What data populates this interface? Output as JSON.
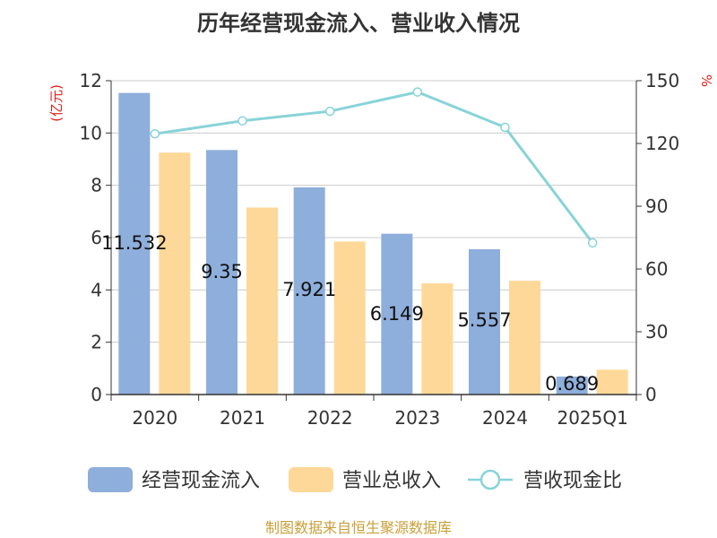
{
  "title": "历年经营现金流入、营业收入情况",
  "footer": "制图数据来自恒生聚源数据库",
  "chart_data": {
    "type": "bar",
    "categories": [
      "2020",
      "2021",
      "2022",
      "2023",
      "2024",
      "2025Q1"
    ],
    "series": [
      {
        "name": "经营现金流入",
        "type": "bar",
        "axis": "left",
        "color": "#8eaedb",
        "values": [
          11.532,
          9.35,
          7.921,
          6.149,
          5.557,
          0.689
        ],
        "labels": [
          "11.532",
          "9.35",
          "7.921",
          "6.149",
          "5.557",
          "0.689"
        ]
      },
      {
        "name": "营业总收入",
        "type": "bar",
        "axis": "left",
        "color": "#fed898",
        "values": [
          9.25,
          7.15,
          5.85,
          4.25,
          4.35,
          0.95
        ]
      },
      {
        "name": "营收现金比",
        "type": "line",
        "axis": "right",
        "color": "#88d3d8",
        "values": [
          124.6,
          130.8,
          135.4,
          144.6,
          127.7,
          72.5
        ]
      }
    ],
    "y_left": {
      "label": "(亿元)",
      "min": 0,
      "max": 12,
      "ticks": [
        0,
        2,
        4,
        6,
        8,
        10,
        12
      ]
    },
    "y_right": {
      "label": "%",
      "min": 0,
      "max": 150,
      "ticks": [
        0,
        30,
        60,
        90,
        120,
        150
      ]
    },
    "grid": true,
    "legend_position": "bottom"
  }
}
